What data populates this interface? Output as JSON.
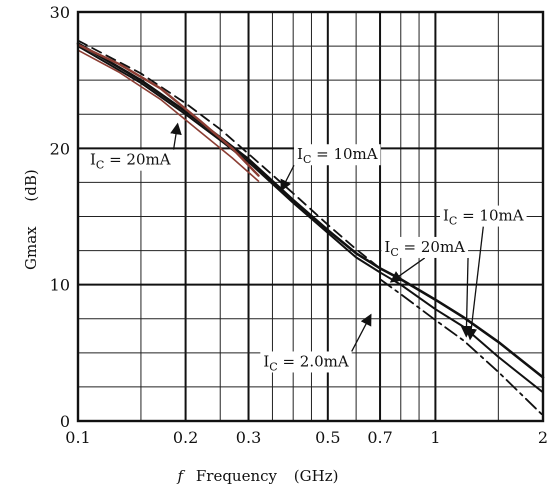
{
  "chart_data": {
    "type": "line",
    "xscale": "log",
    "xlim": [
      0.1,
      2
    ],
    "ylim": [
      0,
      30
    ],
    "grid": true,
    "xlabel_prefix": "f",
    "xlabel": "Frequency",
    "xlabel_unit": "(GHz)",
    "ylabel": "Gmax",
    "ylabel_unit": "(dB)",
    "x_ticks": [
      {
        "value": 0.1,
        "label": "0.1"
      },
      {
        "value": 0.2,
        "label": "0.2"
      },
      {
        "value": 0.3,
        "label": "0.3"
      },
      {
        "value": 0.5,
        "label": "0.5"
      },
      {
        "value": 0.7,
        "label": "0.7"
      },
      {
        "value": 1,
        "label": "1"
      },
      {
        "value": 2,
        "label": "2"
      }
    ],
    "y_ticks": [
      {
        "value": 0,
        "label": "0"
      },
      {
        "value": 10,
        "label": "10"
      },
      {
        "value": 20,
        "label": "20"
      },
      {
        "value": 30,
        "label": "30"
      }
    ],
    "x_minor_grid": [
      0.15,
      0.25,
      0.35,
      0.4,
      0.45,
      0.6,
      0.8,
      0.9,
      1.5
    ],
    "y_minor_grid": [
      2.5,
      5,
      7.5,
      12.5,
      15,
      17.5,
      22.5,
      25,
      27.5
    ],
    "series": [
      {
        "style": "solid",
        "color": "#111111",
        "width": 2.6,
        "x": [
          0.1,
          0.15,
          0.2,
          0.25,
          0.3,
          0.4,
          0.5,
          0.6,
          0.7,
          0.8,
          1.0,
          1.2,
          1.5,
          2.0
        ],
        "y": [
          27.7,
          25.0,
          22.7,
          20.8,
          19.2,
          16.2,
          14.0,
          12.3,
          11.2,
          10.4,
          8.9,
          7.6,
          5.8,
          3.2
        ]
      },
      {
        "style": "solid",
        "color": "#111111",
        "width": 2.0,
        "x": [
          0.1,
          0.15,
          0.2,
          0.25,
          0.3,
          0.4,
          0.5,
          0.6,
          0.7,
          0.8,
          1.0,
          1.2,
          1.5,
          2.0
        ],
        "y": [
          27.5,
          24.8,
          22.5,
          20.6,
          19.0,
          16.0,
          13.8,
          12.0,
          10.9,
          10.0,
          8.2,
          6.9,
          4.7,
          2.1
        ]
      },
      {
        "style": "dashed",
        "color": "#111111",
        "width": 1.8,
        "x": [
          0.1,
          0.15,
          0.2,
          0.25,
          0.3,
          0.4,
          0.5,
          0.6,
          0.7
        ],
        "y": [
          27.9,
          25.5,
          23.3,
          21.4,
          19.6,
          16.7,
          14.4,
          12.6,
          11.2
        ]
      },
      {
        "style": "dashdot",
        "color": "#111111",
        "width": 1.8,
        "x": [
          0.7,
          0.8,
          1.0,
          1.2,
          1.5,
          2.0
        ],
        "y": [
          10.4,
          9.3,
          7.4,
          5.9,
          3.6,
          0.4
        ]
      },
      {
        "style": "solid",
        "color": "#8b3d33",
        "width": 2.4,
        "x": [
          0.1,
          0.13,
          0.17,
          0.22,
          0.27,
          0.32
        ],
        "y": [
          27.6,
          26.2,
          24.4,
          22.0,
          20.0,
          18.0
        ]
      },
      {
        "style": "solid",
        "color": "#8b3d33",
        "width": 1.6,
        "x": [
          0.1,
          0.13,
          0.17,
          0.22,
          0.27,
          0.32
        ],
        "y": [
          27.2,
          25.6,
          23.6,
          21.2,
          19.3,
          17.6
        ]
      }
    ],
    "annotations": [
      {
        "main": "I",
        "sub": "C",
        "rest": " = 20mA",
        "at": [
          0.108,
          18.8
        ],
        "arrow_to": [
          0.19,
          21.8
        ]
      },
      {
        "main": "I",
        "sub": "C",
        "rest": " = 10mA",
        "at": [
          0.41,
          19.2
        ],
        "arrow_to": [
          0.37,
          16.9
        ]
      },
      {
        "main": "I",
        "sub": "C",
        "rest": " = 10mA",
        "at": [
          1.05,
          14.7
        ],
        "arrow_to": [
          1.25,
          6.0
        ]
      },
      {
        "main": "I",
        "sub": "C",
        "rest": " = 20mA",
        "at": [
          0.72,
          12.4
        ],
        "arrow_to": [
          0.75,
          10.2
        ]
      },
      {
        "main": "I",
        "sub": "C",
        "rest": " = 20mA",
        "at": [
          0.72,
          12.4
        ],
        "arrow_to": [
          1.22,
          6.2
        ]
      },
      {
        "main": "I",
        "sub": "C",
        "rest": " = 2.0mA",
        "at": [
          0.33,
          4.0
        ],
        "arrow_to": [
          0.66,
          7.8
        ]
      }
    ]
  }
}
